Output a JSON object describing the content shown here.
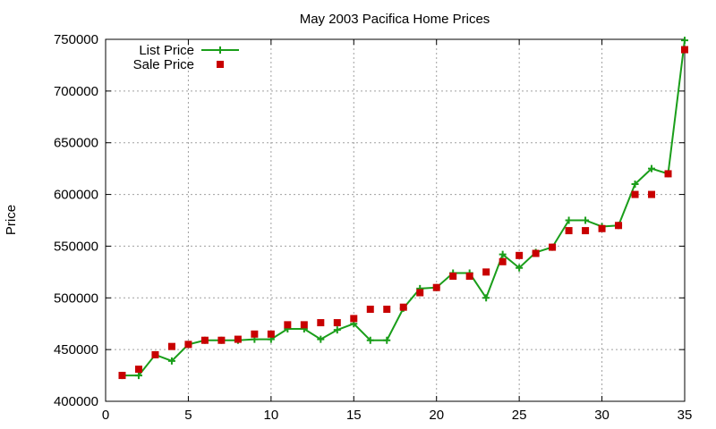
{
  "chart_data": {
    "type": "line",
    "title": "May 2003 Pacifica Home Prices",
    "xlabel": "",
    "ylabel": "Price",
    "xlim": [
      0,
      35
    ],
    "ylim": [
      400000,
      750000
    ],
    "xticks": [
      "0",
      "5",
      "10",
      "15",
      "20",
      "25",
      "30",
      "35"
    ],
    "xtick_values": [
      0,
      5,
      10,
      15,
      20,
      25,
      30,
      35
    ],
    "yticks": [
      "400000",
      "450000",
      "500000",
      "550000",
      "600000",
      "650000",
      "700000",
      "750000"
    ],
    "ytick_values": [
      400000,
      450000,
      500000,
      550000,
      600000,
      650000,
      700000,
      750000
    ],
    "grid": true,
    "legend_position": "top-left",
    "x": [
      1,
      2,
      3,
      4,
      5,
      6,
      7,
      8,
      9,
      10,
      11,
      12,
      13,
      14,
      15,
      16,
      17,
      18,
      19,
      20,
      21,
      22,
      23,
      24,
      25,
      26,
      27,
      28,
      29,
      30,
      31,
      32,
      33,
      34,
      35
    ],
    "series": [
      {
        "name": "List Price",
        "style": "line-plus",
        "color": "#1a9e1a",
        "values": [
          425000,
          425000,
          445000,
          439000,
          455000,
          459000,
          459000,
          459000,
          460000,
          460000,
          470000,
          470000,
          460000,
          469000,
          475000,
          459000,
          459000,
          490000,
          509000,
          510000,
          524000,
          524000,
          500000,
          542000,
          529000,
          544000,
          549000,
          575000,
          575000,
          569000,
          570000,
          610000,
          625000,
          620000,
          749000
        ]
      },
      {
        "name": "Sale Price",
        "style": "points-square",
        "color": "#c80000",
        "values": [
          425000,
          431000,
          445000,
          453000,
          455000,
          459000,
          459000,
          460000,
          465000,
          465000,
          474000,
          474000,
          476000,
          476000,
          480000,
          489000,
          489000,
          491000,
          505000,
          510000,
          521000,
          521000,
          525000,
          535000,
          541000,
          543000,
          549000,
          565000,
          565000,
          567000,
          570000,
          600000,
          600000,
          620000,
          740000
        ]
      }
    ]
  }
}
